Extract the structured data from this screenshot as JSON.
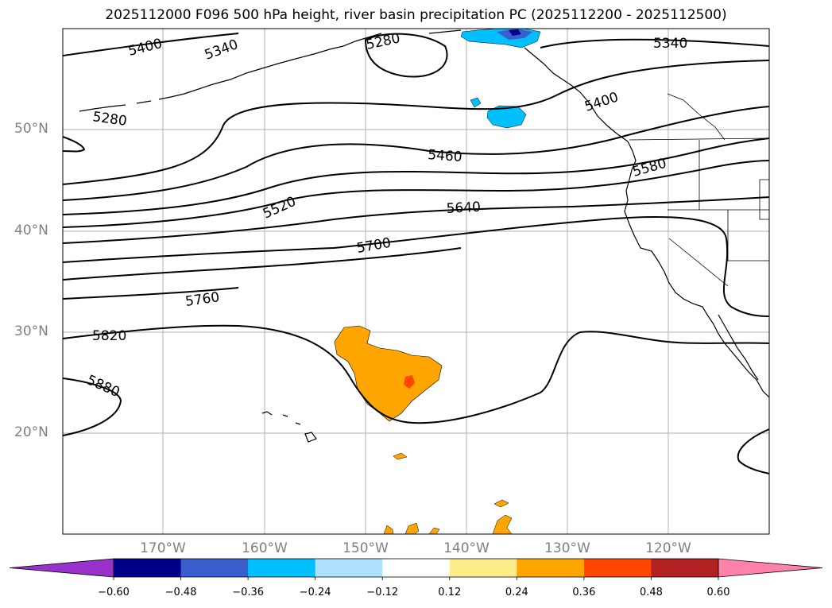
{
  "title": "2025112000 F096 500 hPa height, river basin precipitation PC (2025112200 - 2025112500)",
  "map": {
    "projection": "PlateCarree",
    "lat_labels": [
      "50°N",
      "40°N",
      "30°N",
      "20°N"
    ],
    "lon_labels": [
      "170°W",
      "160°W",
      "150°W",
      "140°W",
      "130°W",
      "120°W"
    ],
    "contour_labels": [
      "5400",
      "5340",
      "5280",
      "5340",
      "5400",
      "5280",
      "5460",
      "5580",
      "5520",
      "5640",
      "5700",
      "5760",
      "5820",
      "5880"
    ],
    "contour_color": "#000000",
    "coast_color": "#000000",
    "grid_color": "#b0b0b0"
  },
  "colorbar": {
    "ticks": [
      "−0.60",
      "−0.48",
      "−0.36",
      "−0.24",
      "−0.12",
      "0.12",
      "0.24",
      "0.36",
      "0.48",
      "0.60"
    ],
    "colors": [
      "#9932cc",
      "#00008b",
      "#3a5fcd",
      "#00bfff",
      "#b0e2ff",
      "#ffffff",
      "#ffec8b",
      "#ffa500",
      "#ff4500",
      "#b22222",
      "#ff82ab"
    ]
  }
}
